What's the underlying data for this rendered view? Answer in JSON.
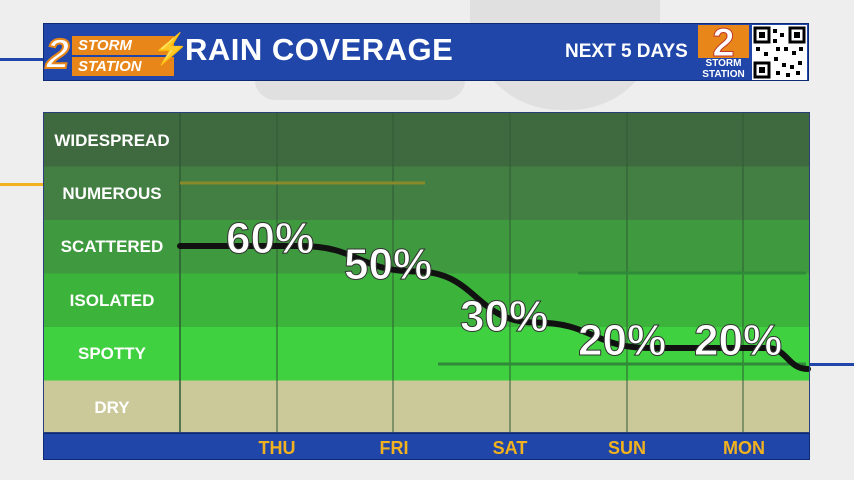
{
  "header": {
    "logo_top": "STORM",
    "logo_bottom": "STATION",
    "logo_number": "2",
    "title": "RAIN COVERAGE",
    "subtitle": "NEXT 5 DAYS",
    "badge_number": "2",
    "badge_text_top": "STORM",
    "badge_text_bottom": "STATION"
  },
  "colors": {
    "header_bg": "#1f46a8",
    "logo_orange": "#e8861a",
    "day_label": "#f2b21f",
    "widespread": "#3f6a3f",
    "numerous": "#437f43",
    "scattered": "#3f9a3f",
    "isolated": "#3cb43c",
    "spotty": "#3fd13f",
    "dry": "#cbc99a",
    "curve": "#111111"
  },
  "chart_data": {
    "type": "line",
    "x": [
      "THU",
      "FRI",
      "SAT",
      "SUN",
      "MON"
    ],
    "series": [
      {
        "values": [
          60,
          50,
          30,
          20,
          20
        ],
        "labels": [
          "60%",
          "50%",
          "30%",
          "20%",
          "20%"
        ]
      }
    ],
    "categories": [
      "WIDESPREAD",
      "NUMEROUS",
      "SCATTERED",
      "ISOLATED",
      "SPOTTY",
      "DRY"
    ],
    "category_levels": [
      100,
      80,
      60,
      40,
      20,
      0
    ],
    "ylim": [
      0,
      100
    ],
    "grid": true
  }
}
